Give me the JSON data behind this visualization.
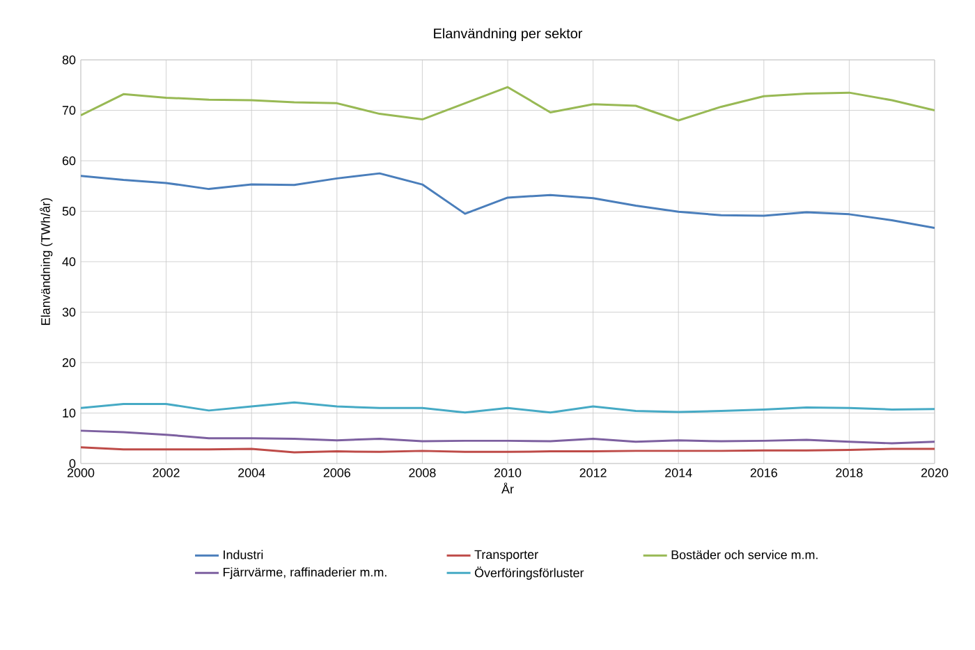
{
  "chart_data": {
    "type": "line",
    "title": "Elanvändning per sektor",
    "xlabel": "År",
    "ylabel": "Elanvändning (TWh/år)",
    "x": [
      2000,
      2001,
      2002,
      2003,
      2004,
      2005,
      2006,
      2007,
      2008,
      2009,
      2010,
      2011,
      2012,
      2013,
      2014,
      2015,
      2016,
      2017,
      2018,
      2019,
      2020
    ],
    "xlim": [
      2000,
      2020
    ],
    "xticks": [
      2000,
      2002,
      2004,
      2006,
      2008,
      2010,
      2012,
      2014,
      2016,
      2018,
      2020
    ],
    "ylim": [
      0,
      80
    ],
    "yticks": [
      0,
      10,
      20,
      30,
      40,
      50,
      60,
      70,
      80
    ],
    "grid": true,
    "legend": "bottom",
    "marker": "none",
    "line_style": "solid",
    "series": [
      {
        "name": "Industri",
        "color": "#4a7ebb",
        "values": [
          57,
          56.2,
          55.6,
          54.4,
          55.3,
          55.2,
          56.5,
          57.5,
          55.3,
          49.5,
          52.7,
          53.2,
          52.6,
          51.1,
          49.9,
          49.2,
          49.1,
          49.8,
          49.4,
          48.2,
          46.7
        ]
      },
      {
        "name": "Transporter",
        "color": "#be4b48",
        "values": [
          3.2,
          2.8,
          2.8,
          2.8,
          2.9,
          2.2,
          2.4,
          2.3,
          2.5,
          2.3,
          2.3,
          2.4,
          2.4,
          2.5,
          2.5,
          2.5,
          2.6,
          2.6,
          2.7,
          2.9,
          2.9
        ]
      },
      {
        "name": "Bostäder och service m.m.",
        "color": "#98b954",
        "values": [
          69,
          73.2,
          72.5,
          72.1,
          72.0,
          71.6,
          71.4,
          69.3,
          68.2,
          71.4,
          74.6,
          69.6,
          71.2,
          70.9,
          68.0,
          70.7,
          72.8,
          73.3,
          73.5,
          72.0,
          70.0
        ]
      },
      {
        "name": "Fjärrvärme, raffinaderier m.m.",
        "color": "#7d60a0",
        "values": [
          6.5,
          6.2,
          5.7,
          5.0,
          5.0,
          4.9,
          4.6,
          4.9,
          4.4,
          4.5,
          4.5,
          4.4,
          4.9,
          4.3,
          4.6,
          4.4,
          4.5,
          4.7,
          4.3,
          4.0,
          4.3
        ]
      },
      {
        "name": "Överföringsförluster",
        "color": "#46aac5",
        "values": [
          11,
          11.8,
          11.8,
          10.5,
          11.3,
          12.1,
          11.3,
          11.0,
          11.0,
          10.1,
          11.0,
          10.1,
          11.3,
          10.4,
          10.2,
          10.4,
          10.7,
          11.1,
          11.0,
          10.7,
          10.8
        ]
      }
    ]
  }
}
